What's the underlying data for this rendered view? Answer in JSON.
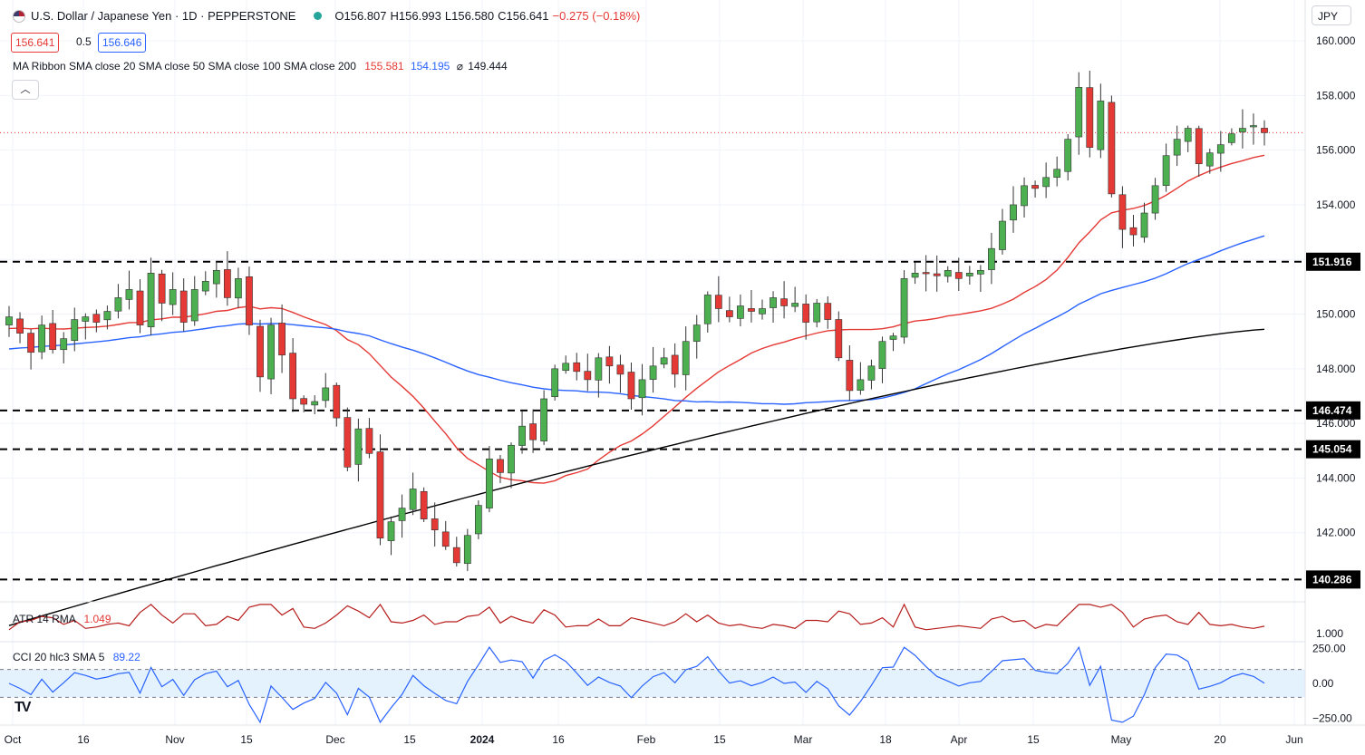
{
  "header": {
    "symbol_title": "U.S. Dollar / Japanese Yen · 1D · PEPPERSTONE",
    "open": "O156.807",
    "high": "H156.993",
    "low": "L156.580",
    "close": "C156.641",
    "change": "−0.275 (−0.18%)",
    "sell_price": "156.641",
    "spread": "0.5",
    "buy_price": "156.646",
    "ma_label": "MA Ribbon SMA close 20 SMA close 50 SMA close 100 SMA close 200",
    "ma20_value": "155.581",
    "ma50_value": "154.195",
    "ma200_value": "149.444",
    "currency": "JPY",
    "collapse_icon": "chevron-up-icon",
    "logo": "TV"
  },
  "indicators": {
    "atr_label": "ATR 14 RMA",
    "atr_value": "1.049",
    "cci_label": "CCI 20 hlc3 SMA 5",
    "cci_value": "89.22"
  },
  "chart_data": {
    "type": "candlestick",
    "instrument": "USD/JPY",
    "timeframe": "1D",
    "y_range": [
      140.0,
      160.5
    ],
    "y_ticks": [
      142.0,
      144.0,
      146.0,
      148.0,
      150.0,
      152.0,
      154.0,
      156.0,
      158.0,
      160.0
    ],
    "x_ticks": [
      "Oct",
      "16",
      "Nov",
      "15",
      "Dec",
      "15",
      "2024",
      "16",
      "Feb",
      "15",
      "Mar",
      "18",
      "Apr",
      "15",
      "May",
      "20",
      "Jun"
    ],
    "last_price": 156.641,
    "levels": [
      151.916,
      146.474,
      145.054,
      140.286
    ],
    "close_path": [
      149.9,
      149.3,
      148.6,
      149.6,
      148.7,
      149.1,
      149.8,
      149.9,
      149.7,
      150.1,
      150.6,
      150.9,
      149.6,
      151.5,
      150.4,
      150.9,
      149.7,
      150.9,
      151.2,
      151.6,
      150.6,
      151.3,
      149.6,
      147.7,
      149.6,
      148.5,
      146.9,
      146.7,
      146.8,
      147.3,
      146.2,
      144.4,
      145.8,
      144.9,
      141.8,
      142.4,
      142.9,
      143.6,
      142.5,
      142.1,
      141.5,
      140.9,
      141.9,
      143.0,
      144.7,
      144.2,
      145.2,
      145.9,
      145.4,
      146.9,
      148.0,
      148.2,
      147.9,
      147.6,
      148.4,
      148.1,
      147.8,
      146.9,
      147.6,
      148.1,
      148.4,
      147.8,
      149.0,
      149.6,
      150.7,
      150.2,
      149.9,
      150.3,
      150.1,
      150.2,
      150.6,
      150.3,
      150.4,
      149.7,
      150.4,
      149.8,
      148.4,
      147.2,
      147.6,
      148.1,
      149.0,
      149.2,
      151.3,
      151.5,
      151.5,
      151.4,
      151.6,
      151.3,
      151.5,
      151.6,
      152.4,
      153.4,
      154.0,
      154.7,
      154.6,
      155.0,
      155.3,
      156.4,
      158.3,
      156.1,
      157.8,
      154.4,
      153.1,
      152.9,
      153.7,
      154.7,
      155.8,
      156.4,
      156.8,
      155.5,
      155.9,
      156.2,
      156.6,
      156.8,
      156.9,
      156.64
    ],
    "sma20_value": 155.581,
    "sma50_value": 154.195,
    "sma200_value": 149.444,
    "atr_ticks": [
      1.0
    ],
    "cci_ticks": [
      250.0,
      0.0,
      -250.0
    ],
    "cci_band": [
      100.0,
      -100.0
    ]
  },
  "colors": {
    "bull": "#4caf50",
    "bear": "#e53935",
    "sma20": "#e53935",
    "sma50": "#2962ff",
    "sma200": "#000000",
    "atr": "#b71c1c",
    "cci": "#2962ff",
    "grid": "#f0f3fa"
  }
}
